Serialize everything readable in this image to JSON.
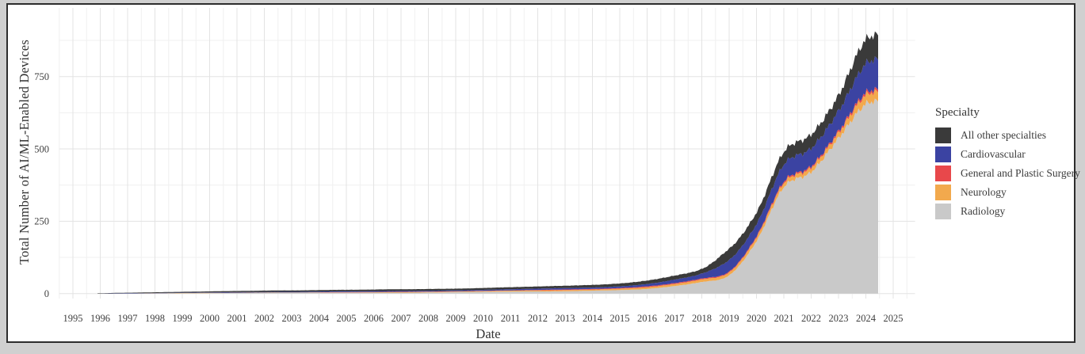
{
  "chart_data": {
    "type": "area",
    "stacked": true,
    "title": "",
    "xlabel": "Date",
    "ylabel": "Total Number of AI/ML-Enabled Devices",
    "x_ticks": [
      1995,
      1996,
      1997,
      1998,
      1999,
      2000,
      2001,
      2002,
      2003,
      2004,
      2005,
      2006,
      2007,
      2008,
      2009,
      2010,
      2011,
      2012,
      2013,
      2014,
      2015,
      2016,
      2017,
      2018,
      2019,
      2020,
      2021,
      2022,
      2023,
      2024,
      2025
    ],
    "y_ticks": [
      0,
      250,
      500,
      750
    ],
    "y_minor_ticks": [
      125,
      375,
      625,
      875
    ],
    "x_minor_step": 0.5,
    "xlim": [
      1994.5,
      2025.8
    ],
    "ylim": [
      0,
      985
    ],
    "grid": "on",
    "x": [
      1995.9,
      1997,
      1999,
      2001,
      2003,
      2005,
      2007,
      2009,
      2011,
      2013,
      2014,
      2015,
      2016,
      2017,
      2018,
      2019,
      2020,
      2021,
      2022,
      2023,
      2024,
      2024.45
    ],
    "series": [
      {
        "name": "Radiology",
        "color": "#c9c9c9",
        "values": [
          0,
          0,
          1,
          2,
          3,
          3,
          3,
          5,
          7,
          8,
          10,
          12,
          16,
          26,
          40,
          63,
          181,
          368,
          420,
          537,
          655,
          666
        ]
      },
      {
        "name": "Neurology",
        "color": "#f2a94d",
        "values": [
          0,
          0,
          1,
          1,
          1,
          1,
          2,
          2,
          3,
          4,
          4,
          5,
          6,
          7,
          9,
          10,
          13,
          14,
          15,
          18,
          31,
          32
        ]
      },
      {
        "name": "General and Plastic Surgery",
        "color": "#e8484b",
        "values": [
          0,
          0,
          0,
          0,
          0,
          1,
          1,
          1,
          1,
          2,
          2,
          2,
          3,
          3,
          3,
          3,
          4,
          5,
          5,
          6,
          8,
          8
        ]
      },
      {
        "name": "Cardiovascular",
        "color": "#3b43a2",
        "values": [
          0,
          1,
          1,
          2,
          2,
          3,
          3,
          3,
          4,
          5,
          5,
          6,
          8,
          12,
          17,
          40,
          42,
          59,
          62,
          70,
          100,
          105
        ]
      },
      {
        "name": "All other specialties",
        "color": "#3a3a3a",
        "values": [
          1,
          2,
          3,
          4,
          5,
          5,
          6,
          6,
          7,
          8,
          9,
          10,
          12,
          14,
          16,
          39,
          40,
          44,
          48,
          54,
          84,
          85
        ]
      }
    ],
    "totals_final": 896,
    "legend": {
      "title": "Specialty",
      "position": "right",
      "entries": [
        {
          "label": "All other specialties",
          "color": "#3a3a3a"
        },
        {
          "label": "Cardiovascular",
          "color": "#3b43a2"
        },
        {
          "label": "General and Plastic Surgery",
          "color": "#e8484b"
        },
        {
          "label": "Neurology",
          "color": "#f2a94d"
        },
        {
          "label": "Radiology",
          "color": "#c9c9c9"
        }
      ]
    },
    "style": {
      "grid_major_color": "#e3e3e3",
      "grid_minor_color": "#f0f0f0",
      "panel_background": "#ffffff",
      "outer_background": "#d0d0d0",
      "frame_border_color": "#2d2d2d",
      "text_color": "#404040"
    }
  }
}
